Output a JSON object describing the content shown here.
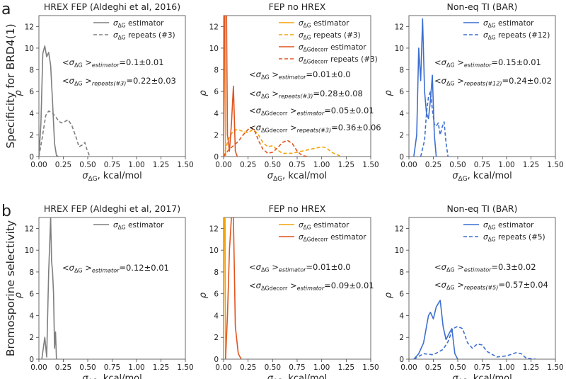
{
  "rows": [
    {
      "letter": "a",
      "ylabel": "Specificity for BRD4(1)"
    },
    {
      "letter": "b",
      "ylabel": "Bromosporine selectivity"
    }
  ],
  "axis": {
    "xlabel_sym": "σ",
    "xlabel_sub": "ΔG",
    "xlabel_unit": ", kcal/mol",
    "ylabel_sym": "ρ",
    "xticks": [
      "0.00",
      "0.25",
      "0.50",
      "0.75",
      "1.00",
      "1.25",
      "1.50"
    ],
    "xtick_values": [
      0,
      0.25,
      0.5,
      0.75,
      1.0,
      1.25,
      1.5
    ],
    "yticks": [
      "0",
      "2",
      "4",
      "6",
      "8",
      "10",
      "12"
    ],
    "ytick_values": [
      0,
      2,
      4,
      6,
      8,
      10,
      12
    ],
    "xlim": [
      0,
      1.5
    ],
    "ylim": [
      0,
      13
    ]
  },
  "colors": {
    "gray": "#7f7f7f",
    "yellow": "#f4a30a",
    "orange": "#e0541e",
    "blue": "#3d6fd1"
  },
  "chart_data": [
    {
      "id": "a1",
      "type": "line",
      "title": "HREX FEP (Aldeghi et al, 2016)",
      "xlim": [
        0,
        1.5
      ],
      "ylim": [
        0,
        13
      ],
      "series": [
        {
          "name": "σΔG estimator",
          "color": "gray",
          "dash": false,
          "points": [
            [
              0,
              0
            ],
            [
              0.02,
              3
            ],
            [
              0.04,
              9.5
            ],
            [
              0.06,
              10.2
            ],
            [
              0.08,
              9.2
            ],
            [
              0.1,
              9.6
            ],
            [
              0.12,
              8.4
            ],
            [
              0.14,
              5
            ],
            [
              0.16,
              1.2
            ],
            [
              0.18,
              0.1
            ],
            [
              0.2,
              0
            ]
          ]
        },
        {
          "name": "σΔG repeats (#3)",
          "color": "gray",
          "dash": true,
          "points": [
            [
              0,
              0
            ],
            [
              0.03,
              1.5
            ],
            [
              0.07,
              3.8
            ],
            [
              0.1,
              4.2
            ],
            [
              0.14,
              4
            ],
            [
              0.17,
              3.7
            ],
            [
              0.2,
              3.3
            ],
            [
              0.23,
              3.1
            ],
            [
              0.26,
              3.2
            ],
            [
              0.3,
              3.4
            ],
            [
              0.34,
              2.8
            ],
            [
              0.38,
              1.8
            ],
            [
              0.41,
              0.9
            ],
            [
              0.45,
              1.1
            ],
            [
              0.47,
              1.3
            ],
            [
              0.49,
              0.7
            ],
            [
              0.52,
              0
            ]
          ]
        }
      ],
      "legend_location": "upper right",
      "annotations": [
        {
          "sym": "<σ",
          "sub1": "ΔG",
          "mid": " >",
          "sub2": "estimator",
          "val": "=0.1±0.01"
        },
        {
          "sym": "<σ",
          "sub1": "ΔG",
          "mid": " >",
          "sub2": "repeats(#3)",
          "val": "=0.22±0.03"
        }
      ]
    },
    {
      "id": "a2",
      "type": "line",
      "title": "FEP no HREX",
      "xlim": [
        0,
        1.5
      ],
      "ylim": [
        0,
        13
      ],
      "series": [
        {
          "name": "σΔG estimator",
          "color": "yellow",
          "dash": false,
          "points": [
            [
              0,
              0
            ],
            [
              0.005,
              13
            ],
            [
              0.01,
              13
            ],
            [
              0.015,
              13
            ],
            [
              0.02,
              0
            ]
          ]
        },
        {
          "name": "σΔG repeats (#3)",
          "color": "yellow",
          "dash": true,
          "points": [
            [
              0,
              0
            ],
            [
              0.05,
              1.6
            ],
            [
              0.1,
              2.4
            ],
            [
              0.15,
              2.5
            ],
            [
              0.2,
              2.3
            ],
            [
              0.25,
              2.2
            ],
            [
              0.3,
              2.5
            ],
            [
              0.35,
              2.1
            ],
            [
              0.4,
              1.3
            ],
            [
              0.45,
              0.9
            ],
            [
              0.5,
              1
            ],
            [
              0.55,
              0.6
            ],
            [
              0.6,
              0.3
            ],
            [
              0.7,
              0.3
            ],
            [
              0.8,
              0.5
            ],
            [
              0.9,
              0.7
            ],
            [
              1,
              0.9
            ],
            [
              1.05,
              0.8
            ],
            [
              1.1,
              0.4
            ],
            [
              1.2,
              0
            ]
          ]
        },
        {
          "name": "σΔGdecorr estimator",
          "color": "orange",
          "dash": false,
          "points": [
            [
              0,
              0
            ],
            [
              0.01,
              13
            ],
            [
              0.02,
              13
            ],
            [
              0.03,
              13
            ],
            [
              0.04,
              2
            ],
            [
              0.06,
              0.5
            ],
            [
              0.08,
              3
            ],
            [
              0.1,
              6.5
            ],
            [
              0.12,
              0.5
            ],
            [
              0.14,
              0
            ]
          ]
        },
        {
          "name": "σΔGdecorr repeats (#3)",
          "color": "orange",
          "dash": true,
          "points": [
            [
              0,
              0
            ],
            [
              0.05,
              0.6
            ],
            [
              0.1,
              1
            ],
            [
              0.15,
              1.4
            ],
            [
              0.2,
              2
            ],
            [
              0.25,
              2.5
            ],
            [
              0.28,
              2.7
            ],
            [
              0.32,
              2.3
            ],
            [
              0.36,
              1.4
            ],
            [
              0.4,
              0.7
            ],
            [
              0.45,
              0.3
            ],
            [
              0.5,
              0.4
            ],
            [
              0.55,
              0.8
            ],
            [
              0.6,
              1.3
            ],
            [
              0.65,
              1.5
            ],
            [
              0.7,
              1.2
            ],
            [
              0.75,
              0.5
            ],
            [
              0.8,
              0.1
            ],
            [
              0.85,
              0
            ]
          ]
        }
      ],
      "legend_location": "upper right",
      "annotations": [
        {
          "sym": "<σ",
          "sub1": "ΔG",
          "mid": " >",
          "sub2": "estimator",
          "val": "=0.01±0.0"
        },
        {
          "sym": "<σ",
          "sub1": "ΔG",
          "mid": " >",
          "sub2": "repeats(#3)",
          "val": "=0.28±0.08"
        },
        {
          "sym": "<σ",
          "sub1": "ΔGdecorr",
          "mid": " >",
          "sub2": "estimator",
          "val": "=0.05±0.01"
        },
        {
          "sym": "<σ",
          "sub1": "ΔGdecorr",
          "mid": " >",
          "sub2": "repeats(#3)",
          "val": "=0.36±0.06"
        }
      ]
    },
    {
      "id": "a3",
      "type": "line",
      "title": "Non-eq TI (BAR)",
      "xlim": [
        0,
        1.5
      ],
      "ylim": [
        0,
        13
      ],
      "series": [
        {
          "name": "σΔG estimator",
          "color": "blue",
          "dash": false,
          "points": [
            [
              0.05,
              0
            ],
            [
              0.08,
              2
            ],
            [
              0.1,
              10
            ],
            [
              0.12,
              7
            ],
            [
              0.14,
              12.7
            ],
            [
              0.16,
              6
            ],
            [
              0.18,
              4
            ],
            [
              0.2,
              3.5
            ],
            [
              0.22,
              5.2
            ],
            [
              0.24,
              7.5
            ],
            [
              0.26,
              2
            ],
            [
              0.28,
              0
            ]
          ]
        },
        {
          "name": "σΔG repeats (#12)",
          "color": "blue",
          "dash": true,
          "points": [
            [
              0.12,
              0
            ],
            [
              0.16,
              1.5
            ],
            [
              0.18,
              4
            ],
            [
              0.2,
              5.5
            ],
            [
              0.22,
              6
            ],
            [
              0.24,
              4.3
            ],
            [
              0.26,
              3
            ],
            [
              0.28,
              2.8
            ],
            [
              0.3,
              3.1
            ],
            [
              0.32,
              2
            ],
            [
              0.34,
              2.7
            ],
            [
              0.36,
              3.2
            ],
            [
              0.38,
              1.3
            ],
            [
              0.4,
              0
            ]
          ]
        }
      ],
      "legend_location": "upper right",
      "annotations": [
        {
          "sym": "<σ",
          "sub1": "ΔG",
          "mid": " >",
          "sub2": "estimator",
          "val": "=0.15±0.01"
        },
        {
          "sym": "<σ",
          "sub1": "ΔG",
          "mid": " >",
          "sub2": "repeats(#12)",
          "val": "=0.24±0.02"
        }
      ]
    },
    {
      "id": "b1",
      "type": "line",
      "title": "HREX FEP (Aldeghi et al, 2017)",
      "xlim": [
        0,
        1.5
      ],
      "ylim": [
        0,
        13
      ],
      "series": [
        {
          "name": "σΔG estimator",
          "color": "gray",
          "dash": false,
          "points": [
            [
              0.03,
              0
            ],
            [
              0.06,
              2
            ],
            [
              0.08,
              0.2
            ],
            [
              0.1,
              8
            ],
            [
              0.12,
              13
            ],
            [
              0.13,
              9
            ],
            [
              0.14,
              8
            ],
            [
              0.15,
              6
            ],
            [
              0.16,
              1
            ],
            [
              0.17,
              2.5
            ],
            [
              0.18,
              0
            ]
          ]
        }
      ],
      "legend_location": "upper right",
      "annotations": [
        {
          "sym": "<σ",
          "sub1": "ΔG",
          "mid": " >",
          "sub2": "estimator",
          "val": "=0.12±0.01"
        }
      ]
    },
    {
      "id": "b2",
      "type": "line",
      "title": "FEP no HREX",
      "xlim": [
        0,
        1.5
      ],
      "ylim": [
        0,
        13
      ],
      "series": [
        {
          "name": "σΔG estimator",
          "color": "yellow",
          "dash": false,
          "points": [
            [
              0,
              0
            ],
            [
              0.005,
              13
            ],
            [
              0.01,
              13
            ],
            [
              0.015,
              13
            ],
            [
              0.02,
              0
            ]
          ]
        },
        {
          "name": "σΔGdecorr estimator",
          "color": "orange",
          "dash": false,
          "points": [
            [
              0.02,
              0
            ],
            [
              0.04,
              4
            ],
            [
              0.06,
              10
            ],
            [
              0.08,
              13
            ],
            [
              0.1,
              13
            ],
            [
              0.11,
              8
            ],
            [
              0.12,
              3
            ],
            [
              0.15,
              0.5
            ],
            [
              0.18,
              0
            ]
          ]
        }
      ],
      "legend_location": "upper right",
      "annotations": [
        {
          "sym": "<σ",
          "sub1": "ΔG",
          "mid": " >",
          "sub2": "estimator",
          "val": "=0.01±0.0"
        },
        {
          "sym": "<σ",
          "sub1": "ΔGdecorr",
          "mid": " >",
          "sub2": "estimator",
          "val": "=0.09±0.01"
        }
      ]
    },
    {
      "id": "b3",
      "type": "line",
      "title": "Non-eq TI (BAR)",
      "xlim": [
        0,
        1.5
      ],
      "ylim": [
        0,
        13
      ],
      "series": [
        {
          "name": "σΔG estimator",
          "color": "blue",
          "dash": false,
          "points": [
            [
              0.05,
              0
            ],
            [
              0.1,
              0.5
            ],
            [
              0.15,
              1.5
            ],
            [
              0.2,
              4
            ],
            [
              0.22,
              4.3
            ],
            [
              0.25,
              3.7
            ],
            [
              0.28,
              4.8
            ],
            [
              0.32,
              5.4
            ],
            [
              0.35,
              3
            ],
            [
              0.38,
              1.8
            ],
            [
              0.42,
              2.5
            ],
            [
              0.44,
              2.8
            ],
            [
              0.47,
              0.5
            ],
            [
              0.5,
              0
            ]
          ]
        },
        {
          "name": "σΔG repeats (#5)",
          "color": "blue",
          "dash": true,
          "points": [
            [
              0.05,
              0
            ],
            [
              0.15,
              0.5
            ],
            [
              0.25,
              0.4
            ],
            [
              0.35,
              0.9
            ],
            [
              0.4,
              1.6
            ],
            [
              0.45,
              2.8
            ],
            [
              0.5,
              3
            ],
            [
              0.55,
              2.8
            ],
            [
              0.6,
              1.5
            ],
            [
              0.65,
              1
            ],
            [
              0.7,
              1.4
            ],
            [
              0.75,
              1.3
            ],
            [
              0.8,
              0.7
            ],
            [
              0.9,
              0.2
            ],
            [
              1,
              0.3
            ],
            [
              1.1,
              0.6
            ],
            [
              1.15,
              0.5
            ],
            [
              1.2,
              0.1
            ],
            [
              1.3,
              0
            ]
          ]
        }
      ],
      "legend_location": "upper right",
      "annotations": [
        {
          "sym": "<σ",
          "sub1": "ΔG",
          "mid": " >",
          "sub2": "estimator",
          "val": "=0.3±0.02"
        },
        {
          "sym": "<σ",
          "sub1": "ΔG",
          "mid": " >",
          "sub2": "repeats(#5)",
          "val": "=0.57±0.04"
        }
      ]
    }
  ]
}
